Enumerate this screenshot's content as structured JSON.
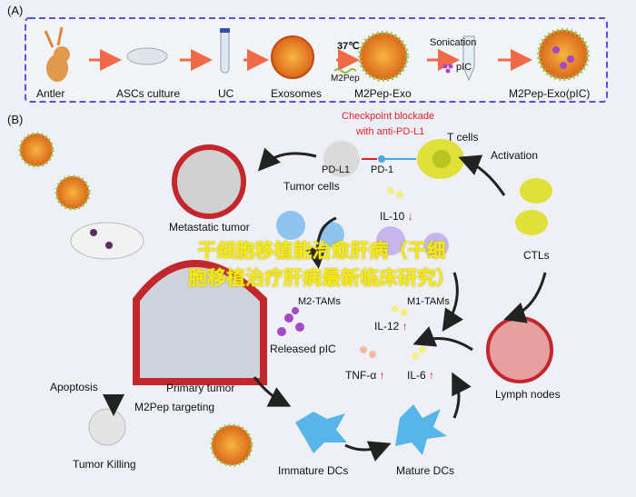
{
  "panel_a": {
    "label": "(A)",
    "steps": [
      "Antler",
      "ASCs culture",
      "UC",
      "Exosomes",
      "M2Pep-Exo",
      "M2Pep-Exo(pIC)"
    ],
    "temperature": "37℃",
    "peptide": "M2Pep",
    "sonication": "Sonication",
    "pic": "pIC"
  },
  "panel_b": {
    "label": "(B)",
    "checkpoint_line1": "Checkpoint blockade",
    "checkpoint_line2": "with anti-PD-L1",
    "t_cells": "T cells",
    "pd_l1": "PD-L1",
    "pd_1": "PD-1",
    "activation": "Activation",
    "tumor_cells": "Tumor cells",
    "metastatic_tumor": "Metastatic tumor",
    "il10": "IL-10",
    "ctls": "CTLs",
    "m2_tams": "M2-TAMs",
    "m1_tams": "M1-TAMs",
    "il12": "IL-12",
    "released_pic": "Released pIC",
    "primary_tumor": "Primary tumor",
    "apoptosis": "Apoptosis",
    "m2pep_targeting": "M2Pep targeting",
    "tnfa": "TNF-α",
    "il6": "IL-6",
    "lymph_nodes": "Lymph nodes",
    "tumor_killing": "Tumor Killing",
    "immature_dcs": "Immature DCs",
    "mature_dcs": "Mature DCs",
    "up_arrow": "↑",
    "down_arrow": "↓"
  },
  "watermark": {
    "line1": "干细胞移植能治愈肝病（干细",
    "line2": "胞移植治疗肝病最新临床研究）"
  },
  "colors": {
    "dashed_box": "#5b4fe0",
    "arrow": "#f06a4a",
    "checkpoint": "#e0202a",
    "watermark": "#f5ea12"
  }
}
